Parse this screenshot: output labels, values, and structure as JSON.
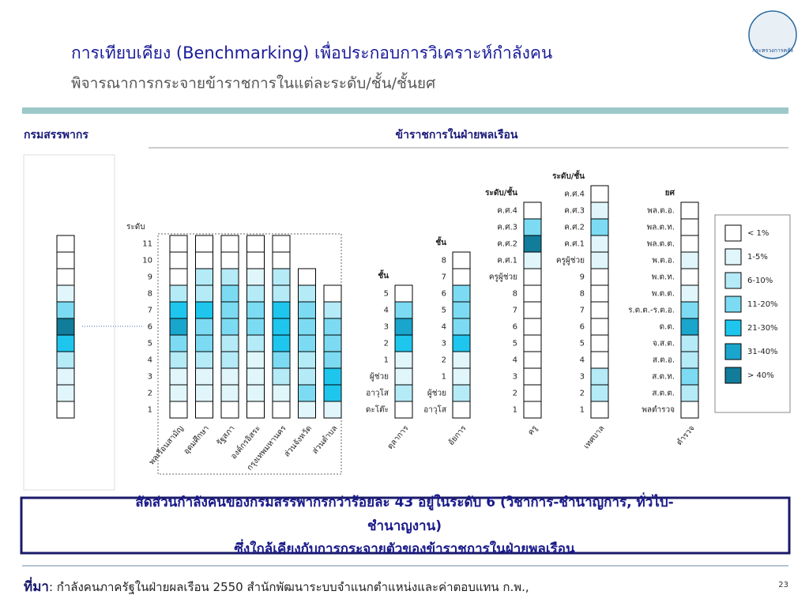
{
  "header": {
    "title": "การเทียบเคียง (Benchmarking) เพื่อประกอบการวิเคราะห์กำลังคน",
    "subtitle": "พิจารณาการกระจายข้าราชการในแต่ละระดับ/ชั้น/ชั้นยศ",
    "logo_text": "กระทรวงการคลัง"
  },
  "left_heading": "กรมสรรพากร",
  "right_heading": "ข้าราชการในฝ่ายพลเรือน",
  "legend": [
    {
      "label": "< 1%",
      "color": "#ffffff"
    },
    {
      "label": "1-5%",
      "color": "#e0f6fb"
    },
    {
      "label": "6-10%",
      "color": "#b5eaf7"
    },
    {
      "label": "11-20%",
      "color": "#7cdbf2"
    },
    {
      "label": "21-30%",
      "color": "#1ec6ee"
    },
    {
      "label": "31-40%",
      "color": "#1aa5cc"
    },
    {
      "label": "> 40%",
      "color": "#127c9b"
    }
  ],
  "dept": {
    "cells": [
      0,
      0,
      0,
      1,
      3,
      6,
      4,
      2,
      1,
      1,
      0
    ]
  },
  "group": {
    "heading": "ระดับ",
    "row_labels": [
      "11",
      "10",
      "9",
      "8",
      "7",
      "6",
      "5",
      "4",
      "3",
      "2",
      "1"
    ],
    "columns": [
      {
        "name": "พลเรือนสามัญ",
        "cells": [
          0,
          0,
          0,
          2,
          4,
          5,
          3,
          2,
          1,
          1,
          0
        ]
      },
      {
        "name": "อุดมศึกษา",
        "cells": [
          0,
          0,
          2,
          2,
          4,
          3,
          3,
          2,
          1,
          1,
          0
        ]
      },
      {
        "name": "รัฐสภา",
        "cells": [
          0,
          0,
          2,
          3,
          3,
          3,
          2,
          2,
          1,
          1,
          0
        ]
      },
      {
        "name": "องค์กรอิสระ",
        "cells": [
          0,
          0,
          1,
          2,
          3,
          3,
          2,
          1,
          1,
          1,
          0
        ]
      },
      {
        "name": "กรุงเทพมหานคร",
        "cells": [
          0,
          0,
          2,
          2,
          4,
          4,
          4,
          3,
          2,
          1,
          0
        ]
      },
      {
        "name": "ส่วนจังหวัด",
        "cells": [
          0,
          2,
          3,
          3,
          3,
          2,
          2,
          3,
          1
        ]
      },
      {
        "name": "ส่วนตำบล",
        "cells": [
          0,
          2,
          3,
          3,
          3,
          4,
          4,
          1
        ]
      }
    ]
  },
  "columns": [
    {
      "name": "ตุลาการ",
      "heading": "ชั้น",
      "row_labels": [
        "5",
        "4",
        "3",
        "2",
        "1",
        "ผู้ช่วย",
        "อาวุโส",
        "ดะโต๊ะ"
      ],
      "cells": [
        0,
        3,
        5,
        4,
        1,
        1,
        2,
        0
      ]
    },
    {
      "name": "อัยการ",
      "heading": "ชั้น",
      "row_labels": [
        "8",
        "7",
        "6",
        "5",
        "4",
        "3",
        "2",
        "1",
        "ผู้ช่วย",
        "อาวุโส"
      ],
      "cells": [
        0,
        0,
        3,
        3,
        3,
        4,
        1,
        1,
        2,
        0
      ]
    },
    {
      "name": "ครู",
      "heading": "ระดับ/ชั้น",
      "row_labels": [
        "ค.ศ.4",
        "ค.ศ.3",
        "ค.ศ.2",
        "ค.ศ.1",
        "ครูผู้ช่วย",
        "8",
        "7",
        "6",
        "5",
        "4",
        "3",
        "2",
        "1"
      ],
      "cells": [
        0,
        3,
        6,
        1,
        0,
        0,
        0,
        0,
        0,
        0,
        0,
        0,
        0
      ]
    },
    {
      "name": "เทศบาล",
      "heading": "ระดับ/ชั้น",
      "row_labels": [
        "ค.ศ.4",
        "ค.ศ.3",
        "ค.ศ.2",
        "ค.ศ.1",
        "ครูผู้ช่วย",
        "9",
        "8",
        "7",
        "6",
        "5",
        "4",
        "3",
        "2",
        "1"
      ],
      "cells": [
        0,
        1,
        3,
        1,
        1,
        0,
        0,
        0,
        0,
        0,
        0,
        2,
        2,
        0
      ]
    },
    {
      "name": "ตำรวจ",
      "heading": "ยศ",
      "row_labels": [
        "พล.ต.อ.",
        "พล.ต.ท.",
        "พล.ต.ต.",
        "พ.ต.อ.",
        "พ.ต.ท.",
        "พ.ต.ต.",
        "ร.ต.ต.-ร.ต.อ.",
        "ด.ต.",
        "จ.ส.ต.",
        "ส.ต.อ.",
        "ส.ต.ท.",
        "ส.ต.ต.",
        "พลตำรวจ"
      ],
      "cells": [
        0,
        0,
        0,
        1,
        0,
        1,
        3,
        5,
        2,
        2,
        3,
        2,
        0
      ]
    }
  ],
  "summary": [
    "สัดส่วนกำลังคนของกรมสรรพากรกว่าร้อยละ 43 อยู่ในระดับ 6 (วิชาการ-ชำนาญการ, ทั่วไป-",
    "ชำนาญงาน)",
    "ซึ่งใกล้เคียงกับการกระจายตัวของข้าราชการในฝ่ายพลเรือน"
  ],
  "footer": {
    "source_label": "ที่มา",
    "source_text": ": กำลังคนภาครัฐในฝ่ายผลเรือน 2550 สำนักพัฒนาระบบจำแนกตำแหน่งและค่าตอบแทน ก.พ.,",
    "page": "23"
  }
}
